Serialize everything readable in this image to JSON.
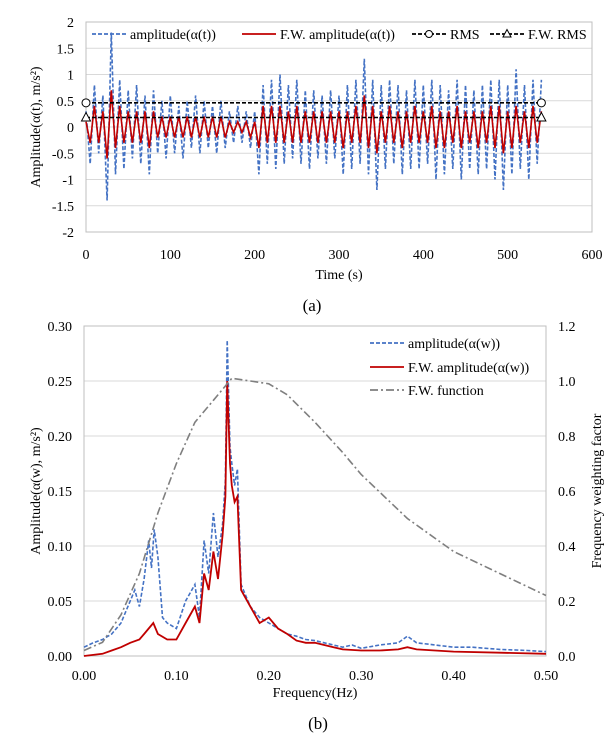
{
  "chart_data": [
    {
      "type": "line",
      "caption": "(a)",
      "xlabel": "Time (s)",
      "ylabel": "Amplitude(α(t), m/s²)",
      "xlim": [
        0,
        600
      ],
      "ylim": [
        -2,
        2
      ],
      "xticks": [
        "0",
        "100",
        "200",
        "300",
        "400",
        "500",
        "600"
      ],
      "yticks": [
        "-2",
        "-1.5",
        "-1",
        "-0.5",
        "0",
        "0.5",
        "1",
        "1.5",
        "2"
      ],
      "grid": "horizontal",
      "legend_position": "top",
      "series": [
        {
          "name": "amplitude(α(t))",
          "color": "#4472C4",
          "style": "dashed",
          "x": [
            0,
            5,
            10,
            15,
            20,
            25,
            30,
            35,
            40,
            45,
            50,
            55,
            60,
            65,
            70,
            75,
            80,
            85,
            90,
            95,
            100,
            105,
            110,
            115,
            120,
            125,
            130,
            135,
            140,
            145,
            150,
            155,
            160,
            165,
            170,
            175,
            180,
            185,
            190,
            195,
            200,
            205,
            210,
            215,
            220,
            225,
            230,
            235,
            240,
            245,
            250,
            255,
            260,
            265,
            270,
            275,
            280,
            285,
            290,
            295,
            300,
            305,
            310,
            315,
            320,
            325,
            330,
            335,
            340,
            345,
            350,
            355,
            360,
            365,
            370,
            375,
            380,
            385,
            390,
            395,
            400,
            405,
            410,
            415,
            420,
            425,
            430,
            435,
            440,
            445,
            450,
            455,
            460,
            465,
            470,
            475,
            480,
            485,
            490,
            495,
            500,
            505,
            510,
            515,
            520,
            525,
            530,
            535,
            540
          ],
          "y": [
            0.3,
            -0.7,
            0.8,
            -0.5,
            0.6,
            -1.4,
            1.8,
            -0.9,
            0.9,
            -0.8,
            0.7,
            -0.6,
            0.8,
            -0.7,
            0.6,
            -0.9,
            0.7,
            -0.5,
            0.5,
            -0.6,
            0.6,
            -0.5,
            0.4,
            -0.6,
            0.5,
            -0.4,
            0.6,
            -0.5,
            0.5,
            -0.4,
            0.4,
            -0.5,
            0.5,
            -0.4,
            0.3,
            -0.3,
            0.4,
            -0.3,
            0.3,
            -0.4,
            0.3,
            -0.9,
            0.8,
            -0.7,
            0.9,
            -0.8,
            1.0,
            -0.7,
            0.8,
            -0.6,
            0.9,
            -0.7,
            0.7,
            -0.8,
            0.7,
            -0.6,
            0.6,
            -0.7,
            0.7,
            -0.6,
            0.6,
            -0.9,
            0.8,
            -0.8,
            0.9,
            -0.7,
            1.3,
            -0.9,
            0.9,
            -1.2,
            0.8,
            -0.8,
            0.9,
            -0.7,
            0.8,
            -0.9,
            0.7,
            -0.8,
            0.9,
            -0.8,
            0.8,
            -0.7,
            0.9,
            -1.0,
            0.8,
            -0.9,
            0.7,
            -0.8,
            0.9,
            -1.0,
            0.8,
            -0.8,
            0.7,
            -0.9,
            0.8,
            -0.8,
            0.9,
            -1.0,
            0.9,
            -1.2,
            0.8,
            -0.9,
            1.1,
            -0.8,
            0.8,
            -1.0,
            0.9,
            -0.7,
            0.9
          ]
        },
        {
          "name": "F.W. amplitude(α(t))",
          "color": "#C00000",
          "style": "solid",
          "x": [
            0,
            5,
            10,
            15,
            20,
            25,
            30,
            35,
            40,
            45,
            50,
            55,
            60,
            65,
            70,
            75,
            80,
            85,
            90,
            95,
            100,
            105,
            110,
            115,
            120,
            125,
            130,
            135,
            140,
            145,
            150,
            155,
            160,
            165,
            170,
            175,
            180,
            185,
            190,
            195,
            200,
            205,
            210,
            215,
            220,
            225,
            230,
            235,
            240,
            245,
            250,
            255,
            260,
            265,
            270,
            275,
            280,
            285,
            290,
            295,
            300,
            305,
            310,
            315,
            320,
            325,
            330,
            335,
            340,
            345,
            350,
            355,
            360,
            365,
            370,
            375,
            380,
            385,
            390,
            395,
            400,
            405,
            410,
            415,
            420,
            425,
            430,
            435,
            440,
            445,
            450,
            455,
            460,
            465,
            470,
            475,
            480,
            485,
            490,
            495,
            500,
            505,
            510,
            515,
            520,
            525,
            530,
            535,
            540
          ],
          "y": [
            0.1,
            -0.3,
            0.4,
            -0.3,
            0.3,
            -0.6,
            0.7,
            -0.4,
            0.4,
            -0.3,
            0.3,
            -0.3,
            0.3,
            -0.3,
            0.3,
            -0.4,
            0.3,
            -0.2,
            0.2,
            -0.2,
            0.2,
            -0.2,
            0.2,
            -0.2,
            0.2,
            -0.2,
            0.2,
            -0.2,
            0.2,
            -0.2,
            0.2,
            -0.2,
            0.2,
            -0.2,
            0.1,
            -0.1,
            0.1,
            -0.1,
            0.1,
            -0.2,
            0.1,
            -0.4,
            0.4,
            -0.3,
            0.4,
            -0.3,
            0.4,
            -0.3,
            0.3,
            -0.3,
            0.4,
            -0.3,
            0.3,
            -0.3,
            0.3,
            -0.3,
            0.3,
            -0.3,
            0.3,
            -0.3,
            0.3,
            -0.4,
            0.3,
            -0.3,
            0.4,
            -0.3,
            0.6,
            -0.4,
            0.4,
            -0.5,
            0.3,
            -0.3,
            0.4,
            -0.3,
            0.3,
            -0.4,
            0.3,
            -0.3,
            0.4,
            -0.3,
            0.3,
            -0.3,
            0.4,
            -0.4,
            0.3,
            -0.4,
            0.3,
            -0.3,
            0.4,
            -0.4,
            0.3,
            -0.3,
            0.3,
            -0.4,
            0.3,
            -0.3,
            0.4,
            -0.4,
            0.4,
            -0.5,
            0.3,
            -0.4,
            0.4,
            -0.3,
            0.3,
            -0.4,
            0.4,
            -0.3,
            0.3
          ]
        },
        {
          "name": "RMS",
          "color": "#000000",
          "style": "dashed",
          "marker": "circle",
          "x": [
            0,
            540
          ],
          "y": [
            0.46,
            0.46
          ]
        },
        {
          "name": "F.W. RMS",
          "color": "#000000",
          "style": "dashed",
          "marker": "triangle",
          "x": [
            0,
            540
          ],
          "y": [
            0.18,
            0.18
          ]
        }
      ]
    },
    {
      "type": "line",
      "caption": "(b)",
      "xlabel": "Frequency(Hz)",
      "ylabel": "Amplitude(α(w), m/s²)",
      "y2label": "Frequency weighting factor",
      "xlim": [
        0,
        0.5
      ],
      "ylim": [
        0,
        0.3
      ],
      "y2lim": [
        0,
        1.2
      ],
      "xticks": [
        "0.00",
        "0.10",
        "0.20",
        "0.30",
        "0.40",
        "0.50"
      ],
      "yticks": [
        "0.00",
        "0.05",
        "0.10",
        "0.15",
        "0.20",
        "0.25",
        "0.30"
      ],
      "y2ticks": [
        "0.0",
        "0.2",
        "0.4",
        "0.6",
        "0.8",
        "1.0",
        "1.2"
      ],
      "grid": "horizontal",
      "legend_position": "top-right",
      "series": [
        {
          "name": "amplitude(α(w))",
          "color": "#4472C4",
          "style": "dashed",
          "axis": "left",
          "x": [
            0.0,
            0.01,
            0.02,
            0.03,
            0.04,
            0.05,
            0.055,
            0.06,
            0.065,
            0.07,
            0.073,
            0.076,
            0.08,
            0.085,
            0.09,
            0.1,
            0.11,
            0.12,
            0.125,
            0.13,
            0.135,
            0.14,
            0.145,
            0.15,
            0.153,
            0.155,
            0.158,
            0.16,
            0.163,
            0.166,
            0.17,
            0.18,
            0.19,
            0.2,
            0.21,
            0.22,
            0.23,
            0.24,
            0.25,
            0.26,
            0.27,
            0.28,
            0.29,
            0.3,
            0.32,
            0.34,
            0.35,
            0.36,
            0.38,
            0.4,
            0.42,
            0.45,
            0.48,
            0.5
          ],
          "y": [
            0.008,
            0.012,
            0.015,
            0.02,
            0.03,
            0.05,
            0.06,
            0.045,
            0.07,
            0.105,
            0.08,
            0.115,
            0.09,
            0.035,
            0.03,
            0.025,
            0.05,
            0.065,
            0.035,
            0.105,
            0.075,
            0.13,
            0.09,
            0.12,
            0.16,
            0.287,
            0.19,
            0.175,
            0.155,
            0.17,
            0.065,
            0.045,
            0.035,
            0.03,
            0.025,
            0.02,
            0.018,
            0.015,
            0.014,
            0.012,
            0.01,
            0.008,
            0.01,
            0.007,
            0.01,
            0.012,
            0.018,
            0.012,
            0.01,
            0.008,
            0.008,
            0.006,
            0.005,
            0.004
          ]
        },
        {
          "name": "F.W. amplitude(α(w))",
          "color": "#C00000",
          "style": "solid",
          "axis": "left",
          "x": [
            0.0,
            0.01,
            0.02,
            0.03,
            0.04,
            0.05,
            0.06,
            0.065,
            0.07,
            0.075,
            0.08,
            0.09,
            0.1,
            0.11,
            0.12,
            0.125,
            0.13,
            0.135,
            0.14,
            0.145,
            0.15,
            0.153,
            0.155,
            0.158,
            0.16,
            0.163,
            0.166,
            0.17,
            0.18,
            0.19,
            0.2,
            0.21,
            0.22,
            0.23,
            0.24,
            0.25,
            0.26,
            0.27,
            0.28,
            0.3,
            0.32,
            0.34,
            0.35,
            0.36,
            0.4,
            0.45,
            0.5
          ],
          "y": [
            0.0,
            0.001,
            0.002,
            0.005,
            0.008,
            0.012,
            0.015,
            0.02,
            0.025,
            0.03,
            0.02,
            0.015,
            0.015,
            0.03,
            0.045,
            0.03,
            0.075,
            0.06,
            0.095,
            0.07,
            0.11,
            0.145,
            0.25,
            0.175,
            0.155,
            0.14,
            0.145,
            0.06,
            0.045,
            0.03,
            0.035,
            0.025,
            0.02,
            0.014,
            0.012,
            0.012,
            0.01,
            0.008,
            0.006,
            0.005,
            0.005,
            0.006,
            0.008,
            0.006,
            0.004,
            0.003,
            0.002
          ]
        },
        {
          "name": "F.W. function",
          "color": "#7F7F7F",
          "style": "dashdot",
          "axis": "right",
          "x": [
            0.0,
            0.02,
            0.04,
            0.06,
            0.08,
            0.1,
            0.12,
            0.14,
            0.16,
            0.18,
            0.2,
            0.22,
            0.25,
            0.28,
            0.3,
            0.35,
            0.4,
            0.45,
            0.5
          ],
          "y": [
            0.02,
            0.05,
            0.15,
            0.3,
            0.52,
            0.7,
            0.85,
            0.93,
            1.01,
            1.0,
            0.99,
            0.95,
            0.85,
            0.74,
            0.66,
            0.5,
            0.38,
            0.3,
            0.22
          ]
        }
      ]
    }
  ]
}
